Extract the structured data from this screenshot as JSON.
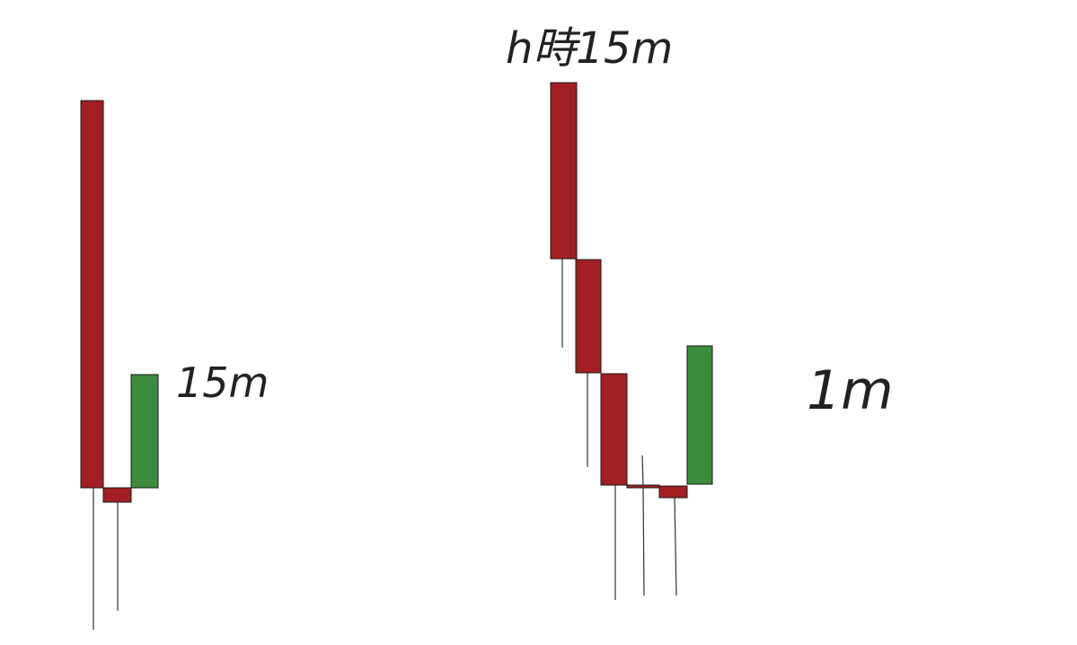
{
  "labels": {
    "left": "15m",
    "center": "h時15m",
    "right": "1m"
  },
  "colors": {
    "bearish": "#a31e22",
    "bullish": "#3b8c3c",
    "outline": "#1a1a1a",
    "wick": "#333333"
  },
  "candles_left": [
    {
      "type": "bearish"
    },
    {
      "type": "bearish"
    },
    {
      "type": "bullish"
    }
  ],
  "candles_right": [
    {
      "type": "bearish"
    },
    {
      "type": "bearish"
    },
    {
      "type": "bearish"
    },
    {
      "type": "bearish"
    },
    {
      "type": "bearish"
    },
    {
      "type": "bullish"
    }
  ]
}
